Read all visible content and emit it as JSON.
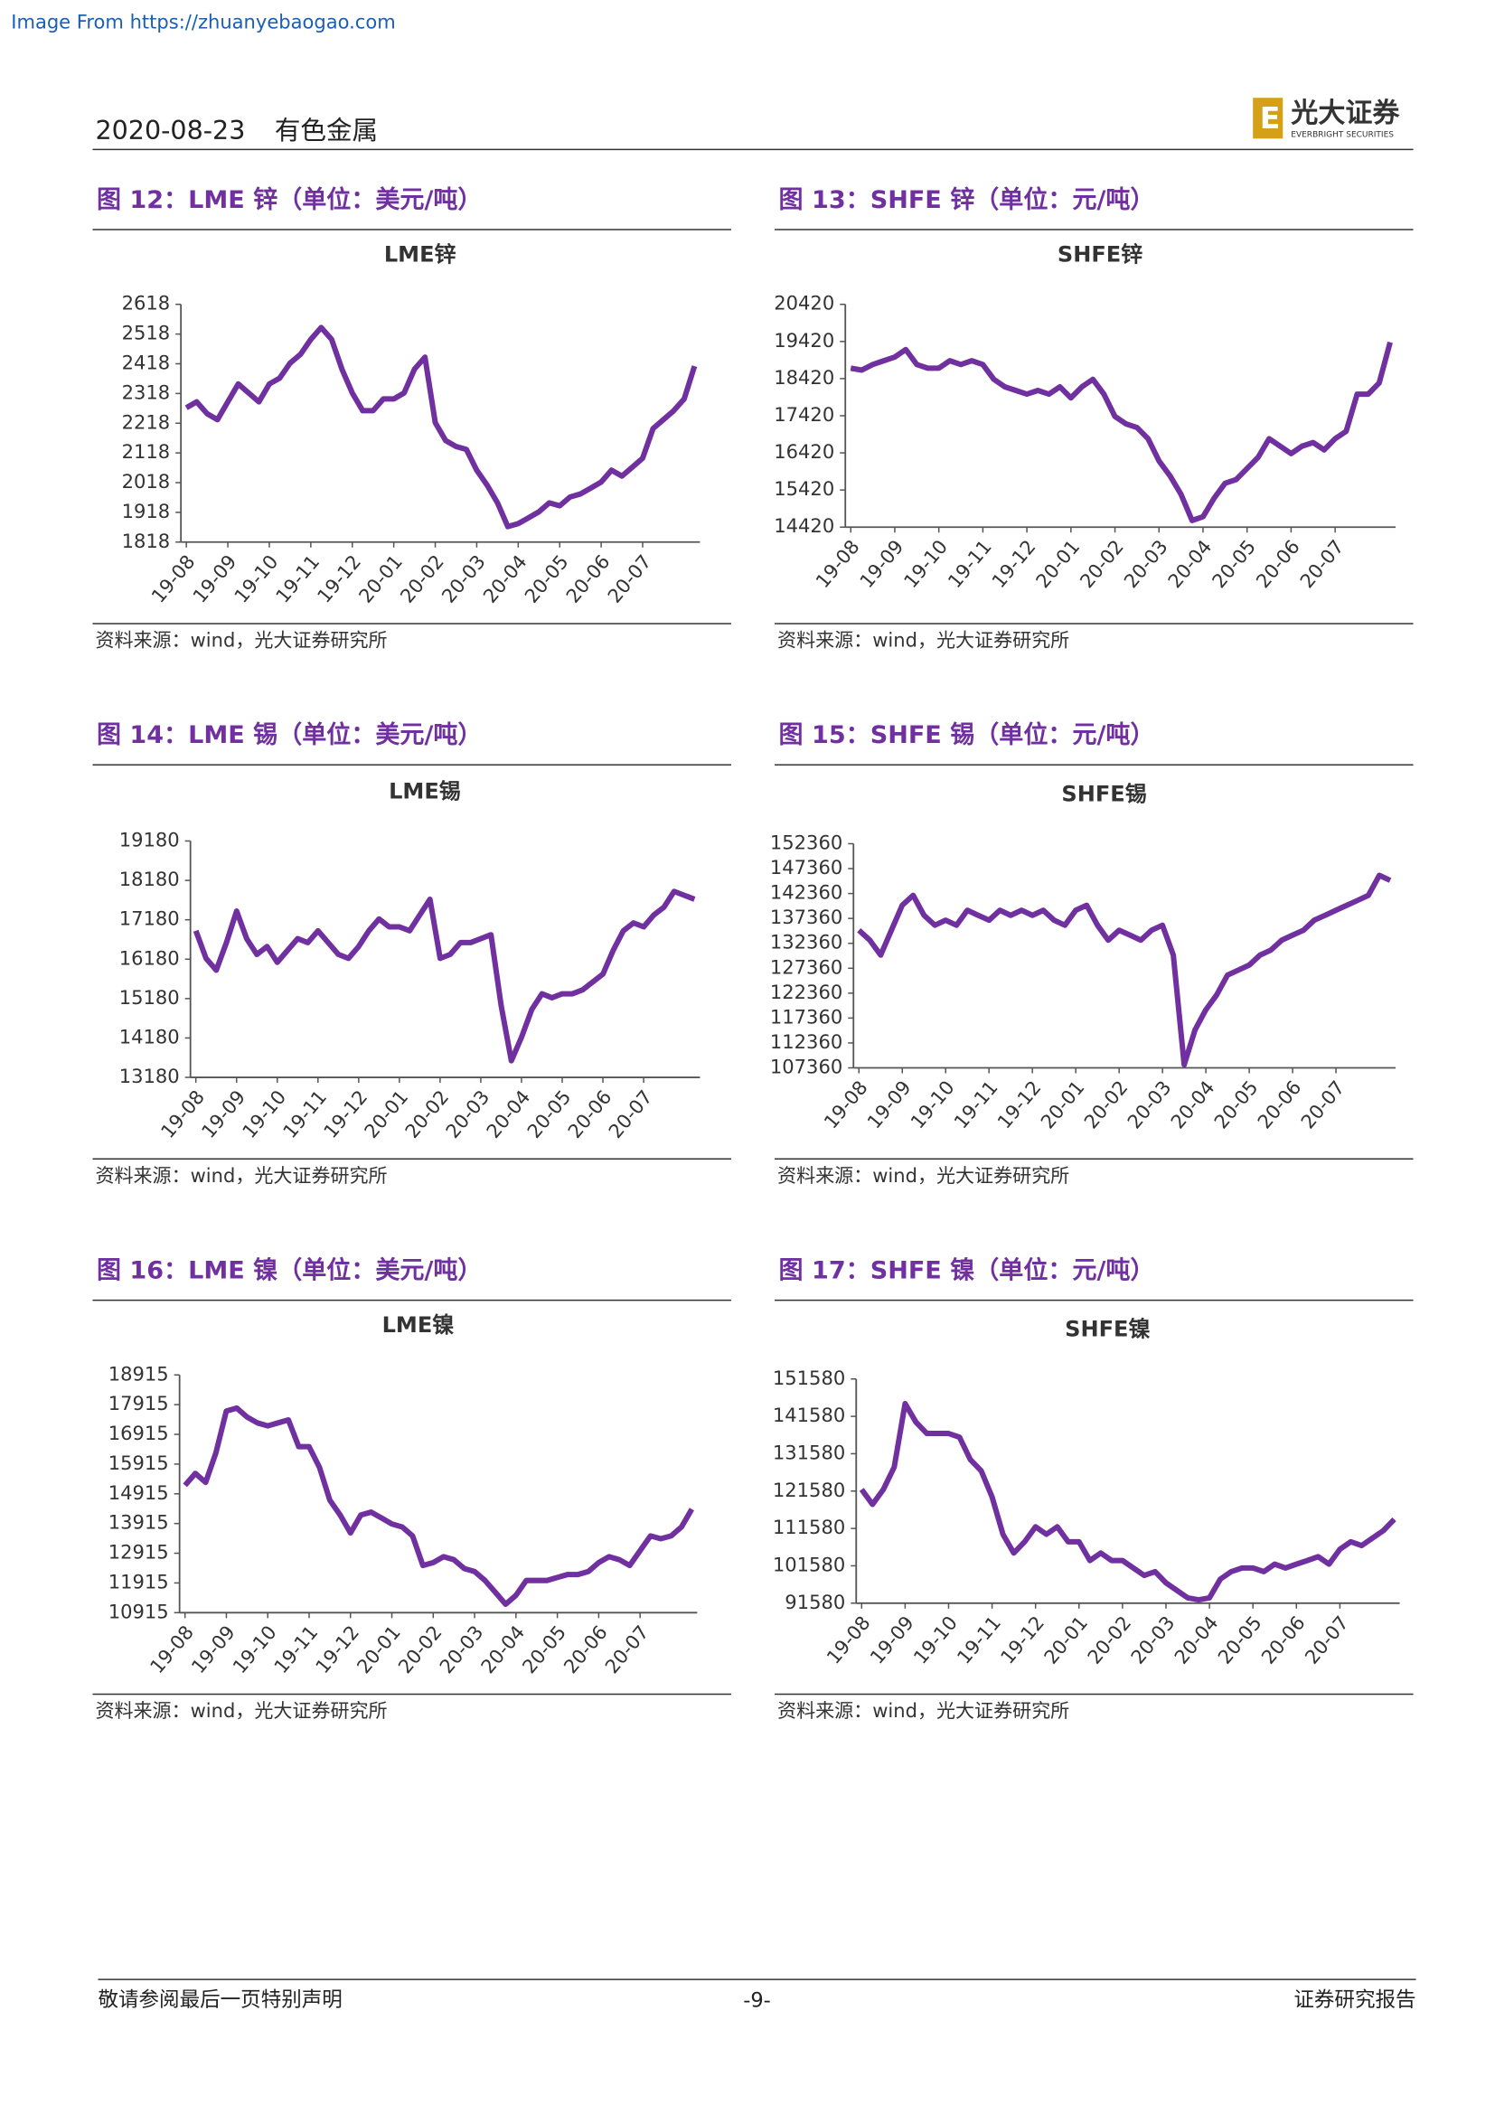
{
  "header": {
    "source_link": "Image From https://zhuanyebaogao.com",
    "date": "2020-08-23",
    "sector": "有色金属",
    "logo_text": "光大证券",
    "logo_sub": "EVERBRIGHT SECURITIES"
  },
  "chart_data": [
    {
      "type": "line",
      "caption": "图 12：LME 锌（单位：美元/吨）",
      "title": "LME锌",
      "source": "资料来源：wind，光大证券研究所",
      "color": "#7030a0",
      "categories": [
        "19-08",
        null,
        null,
        null,
        "19-09",
        null,
        null,
        null,
        "19-10",
        null,
        null,
        null,
        "19-11",
        null,
        null,
        null,
        "19-12",
        null,
        null,
        null,
        "20-01",
        null,
        null,
        null,
        "20-02",
        null,
        null,
        null,
        "20-03",
        null,
        null,
        null,
        "20-04",
        null,
        null,
        null,
        "20-05",
        null,
        null,
        null,
        "20-06",
        null,
        null,
        null,
        "20-07",
        null,
        null,
        null,
        null,
        null
      ],
      "values": [
        2270,
        2290,
        2250,
        2230,
        2290,
        2350,
        2320,
        2290,
        2350,
        2370,
        2420,
        2450,
        2500,
        2540,
        2500,
        2400,
        2320,
        2260,
        2260,
        2300,
        2300,
        2320,
        2400,
        2440,
        2220,
        2160,
        2140,
        2130,
        2060,
        2010,
        1950,
        1870,
        1880,
        1900,
        1920,
        1950,
        1940,
        1970,
        1980,
        2000,
        2020,
        2060,
        2040,
        2070,
        2100,
        2200,
        2230,
        2260,
        2300,
        2410
      ],
      "ylim": [
        1818,
        2618
      ],
      "yticks": [
        1818,
        1918,
        2018,
        2118,
        2218,
        2318,
        2418,
        2518,
        2618
      ]
    },
    {
      "type": "line",
      "caption": "图 13：SHFE 锌（单位：元/吨）",
      "title": "SHFE锌",
      "source": "资料来源：wind，光大证券研究所",
      "color": "#7030a0",
      "categories": [
        "19-08",
        null,
        null,
        null,
        "19-09",
        null,
        null,
        null,
        "19-10",
        null,
        null,
        null,
        "19-11",
        null,
        null,
        null,
        "19-12",
        null,
        null,
        null,
        "20-01",
        null,
        null,
        null,
        "20-02",
        null,
        null,
        null,
        "20-03",
        null,
        null,
        null,
        "20-04",
        null,
        null,
        null,
        "20-05",
        null,
        null,
        null,
        "20-06",
        null,
        null,
        null,
        "20-07",
        null,
        null,
        null,
        null,
        null
      ],
      "values": [
        18700,
        18650,
        18800,
        18900,
        19000,
        19200,
        18800,
        18700,
        18700,
        18900,
        18800,
        18900,
        18800,
        18400,
        18200,
        18100,
        18000,
        18100,
        18000,
        18200,
        17900,
        18200,
        18400,
        18000,
        17400,
        17200,
        17100,
        16800,
        16200,
        15800,
        15300,
        14600,
        14700,
        15200,
        15600,
        15700,
        16000,
        16300,
        16800,
        16600,
        16400,
        16600,
        16700,
        16500,
        16800,
        17000,
        18000,
        18000,
        18300,
        19400
      ],
      "ylim": [
        14420,
        20420
      ],
      "yticks": [
        14420,
        15420,
        16420,
        17420,
        18420,
        19420,
        20420
      ]
    },
    {
      "type": "line",
      "caption": "图 14：LME 锡（单位：美元/吨）",
      "title": "LME锡",
      "source": "资料来源：wind，光大证券研究所",
      "color": "#7030a0",
      "categories": [
        "19-08",
        null,
        null,
        null,
        "19-09",
        null,
        null,
        null,
        "19-10",
        null,
        null,
        null,
        "19-11",
        null,
        null,
        null,
        "19-12",
        null,
        null,
        null,
        "20-01",
        null,
        null,
        null,
        "20-02",
        null,
        null,
        null,
        "20-03",
        null,
        null,
        null,
        "20-04",
        null,
        null,
        null,
        "20-05",
        null,
        null,
        null,
        "20-06",
        null,
        null,
        null,
        "20-07",
        null,
        null,
        null,
        null,
        null
      ],
      "values": [
        16900,
        16200,
        15900,
        16600,
        17400,
        16700,
        16300,
        16500,
        16100,
        16400,
        16700,
        16600,
        16900,
        16600,
        16300,
        16200,
        16500,
        16900,
        17200,
        17000,
        17000,
        16900,
        17300,
        17700,
        16200,
        16300,
        16600,
        16600,
        16700,
        16800,
        15000,
        13600,
        14200,
        14900,
        15300,
        15200,
        15300,
        15300,
        15400,
        15600,
        15800,
        16400,
        16900,
        17100,
        17000,
        17300,
        17500,
        17900,
        17800,
        17700
      ],
      "ylim": [
        13180,
        19180
      ],
      "yticks": [
        13180,
        14180,
        15180,
        16180,
        17180,
        18180,
        19180
      ]
    },
    {
      "type": "line",
      "caption": "图 15：SHFE 锡（单位：元/吨）",
      "title": "SHFE锡",
      "source": "资料来源：wind，光大证券研究所",
      "color": "#7030a0",
      "categories": [
        "19-08",
        null,
        null,
        null,
        "19-09",
        null,
        null,
        null,
        "19-10",
        null,
        null,
        null,
        "19-11",
        null,
        null,
        null,
        "19-12",
        null,
        null,
        null,
        "20-01",
        null,
        null,
        null,
        "20-02",
        null,
        null,
        null,
        "20-03",
        null,
        null,
        null,
        "20-04",
        null,
        null,
        null,
        "20-05",
        null,
        null,
        null,
        "20-06",
        null,
        null,
        null,
        "20-07",
        null,
        null,
        null,
        null,
        null
      ],
      "values": [
        135000,
        133000,
        130000,
        135000,
        140000,
        142000,
        138000,
        136000,
        137000,
        136000,
        139000,
        138000,
        137000,
        139000,
        138000,
        139000,
        138000,
        139000,
        137000,
        136000,
        139000,
        140000,
        136000,
        133000,
        135000,
        134000,
        133000,
        135000,
        136000,
        130000,
        108000,
        115000,
        119000,
        122000,
        126000,
        127000,
        128000,
        130000,
        131000,
        133000,
        134000,
        135000,
        137000,
        138000,
        139000,
        140000,
        141000,
        142000,
        146000,
        145000
      ],
      "ylim": [
        107360,
        152360
      ],
      "yticks": [
        107360,
        112360,
        117360,
        122360,
        127360,
        132360,
        137360,
        142360,
        147360,
        152360
      ]
    },
    {
      "type": "line",
      "caption": "图 16：LME 镍（单位：美元/吨）",
      "title": "LME镍",
      "source": "资料来源：wind，光大证券研究所",
      "color": "#7030a0",
      "categories": [
        "19-08",
        null,
        null,
        null,
        "19-09",
        null,
        null,
        null,
        "19-10",
        null,
        null,
        null,
        "19-11",
        null,
        null,
        null,
        "19-12",
        null,
        null,
        null,
        "20-01",
        null,
        null,
        null,
        "20-02",
        null,
        null,
        null,
        "20-03",
        null,
        null,
        null,
        "20-04",
        null,
        null,
        null,
        "20-05",
        null,
        null,
        null,
        "20-06",
        null,
        null,
        null,
        "20-07",
        null,
        null,
        null,
        null,
        null
      ],
      "values": [
        15200,
        15600,
        15300,
        16300,
        17700,
        17800,
        17500,
        17300,
        17200,
        17300,
        17400,
        16500,
        16500,
        15800,
        14700,
        14200,
        13600,
        14200,
        14300,
        14100,
        13900,
        13800,
        13500,
        12500,
        12600,
        12800,
        12700,
        12400,
        12300,
        12000,
        11600,
        11200,
        11500,
        12000,
        12000,
        12000,
        12100,
        12200,
        12200,
        12300,
        12600,
        12800,
        12700,
        12500,
        13000,
        13500,
        13400,
        13500,
        13800,
        14400
      ],
      "ylim": [
        10915,
        18915
      ],
      "yticks": [
        10915,
        11915,
        12915,
        13915,
        14915,
        15915,
        16915,
        17915,
        18915
      ]
    },
    {
      "type": "line",
      "caption": "图 17：SHFE 镍（单位：元/吨）",
      "title": "SHFE镍",
      "source": "资料来源：wind，光大证券研究所",
      "color": "#7030a0",
      "categories": [
        "19-08",
        null,
        null,
        null,
        "19-09",
        null,
        null,
        null,
        "19-10",
        null,
        null,
        null,
        "19-11",
        null,
        null,
        null,
        "19-12",
        null,
        null,
        null,
        "20-01",
        null,
        null,
        null,
        "20-02",
        null,
        null,
        null,
        "20-03",
        null,
        null,
        null,
        "20-04",
        null,
        null,
        null,
        "20-05",
        null,
        null,
        null,
        "20-06",
        null,
        null,
        null,
        "20-07",
        null,
        null,
        null,
        null,
        null
      ],
      "values": [
        122000,
        118000,
        122000,
        128000,
        145000,
        140000,
        137000,
        137000,
        137000,
        136000,
        130000,
        127000,
        120000,
        110000,
        105000,
        108000,
        112000,
        110000,
        112000,
        108000,
        108000,
        103000,
        105000,
        103000,
        103000,
        101000,
        99000,
        100000,
        97000,
        95000,
        93000,
        92500,
        93000,
        98000,
        100000,
        101000,
        101000,
        100000,
        102000,
        101000,
        102000,
        103000,
        104000,
        102000,
        106000,
        108000,
        107000,
        109000,
        111000,
        114000
      ],
      "ylim": [
        91580,
        151580
      ],
      "yticks": [
        91580,
        101580,
        111580,
        121580,
        131580,
        141580,
        151580
      ]
    }
  ],
  "footer": {
    "disclaimer": "敬请参阅最后一页特别声明",
    "page": "-9-",
    "report_type": "证券研究报告"
  }
}
